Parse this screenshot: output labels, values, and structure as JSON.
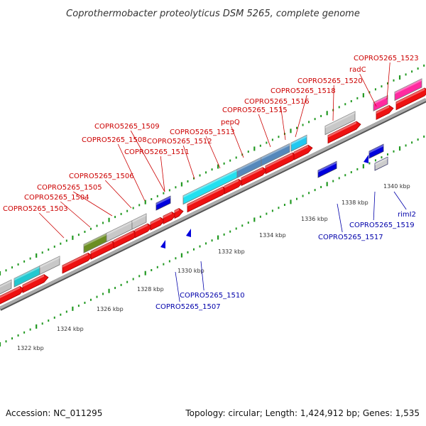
{
  "title": "Coprothermobacter proteolyticus DSM 5265, complete genome",
  "footer": {
    "accession": "Accession: NC_011295",
    "topology": "Topology: circular; Length: 1,424,912 bp; Genes: 1,535"
  },
  "colors": {
    "forward_label": "#cc0000",
    "reverse_label": "#0000aa",
    "cds": "#ee1111",
    "backbone": "#888888",
    "tick": "#229922"
  },
  "kbp_ticks": [
    "1322 kbp",
    "1324 kbp",
    "1326 kbp",
    "1328 kbp",
    "1330 kbp",
    "1332 kbp",
    "1334 kbp",
    "1336 kbp",
    "1338 kbp",
    "1340 kbp"
  ],
  "forward_labels": [
    "COPRO5265_1503",
    "COPRO5265_1504",
    "COPRO5265_1505",
    "COPRO5265_1506",
    "COPRO5265_1508",
    "COPRO5265_1509",
    "COPRO5265_1511",
    "COPRO5265_1512",
    "COPRO5265_1513",
    "pepQ",
    "COPRO5265_1515",
    "COPRO5265_1516",
    "COPRO5265_1518",
    "COPRO5265_1520",
    "radC",
    "COPRO5265_1523"
  ],
  "reverse_labels": [
    "COPRO5265_1507",
    "COPRO5265_1510",
    "COPRO5265_1517",
    "COPRO5265_1519",
    "rimI2"
  ]
}
